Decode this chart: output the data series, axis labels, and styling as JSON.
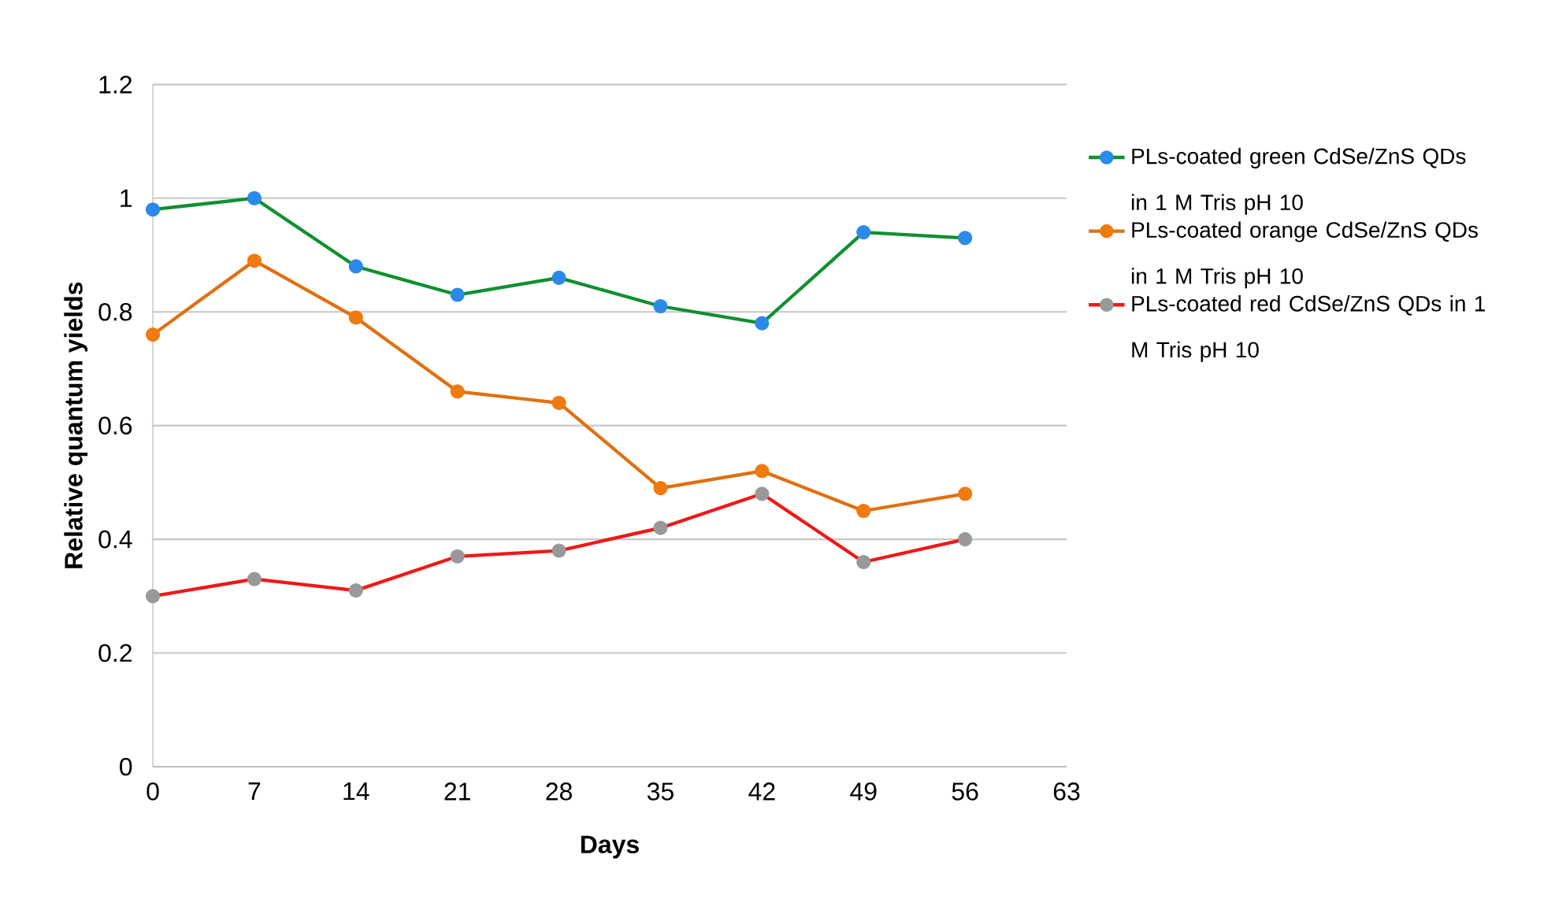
{
  "chart_data": {
    "type": "line",
    "xlabel": "Days",
    "ylabel": "Relative quantum yields",
    "x": [
      0,
      7,
      14,
      21,
      28,
      35,
      42,
      49,
      56
    ],
    "series": [
      {
        "name": "PLs-coated green CdSe/ZnS QDs in 1 M Tris pH 10",
        "color": "#109030",
        "colors": [
          "#2b8ae8",
          "#2b8ae8",
          "#2b8ae8",
          "#2b8ae8",
          "#2b8ae8",
          "#2b8ae8",
          "#2b8ae8",
          "#2b8ae8",
          "#2b8ae8"
        ],
        "values": [
          0.98,
          1.0,
          0.88,
          0.83,
          0.86,
          0.81,
          0.78,
          0.94,
          0.93
        ]
      },
      {
        "name": "PLs-coated orange CdSe/ZnS QDs in 1 M Tris pH 10",
        "color": "#e07010",
        "colors": [
          "#f07a10",
          "#f07a10",
          "#f07a10",
          "#f07a10",
          "#f07a10",
          "#f07a10",
          "#f07a10",
          "#f07a10",
          "#f07a10"
        ],
        "values": [
          0.76,
          0.89,
          0.79,
          0.66,
          0.64,
          0.49,
          0.52,
          0.45,
          0.48
        ]
      },
      {
        "name": "PLs-coated red CdSe/ZnS QDs in 1 M Tris pH 10",
        "color": "#f01818",
        "colors": [
          "#999999",
          "#999999",
          "#999999",
          "#999999",
          "#999999",
          "#999999",
          "#999999",
          "#999999",
          "#999999"
        ],
        "values": [
          0.3,
          0.33,
          0.31,
          0.37,
          0.38,
          0.42,
          0.48,
          0.36,
          0.4
        ]
      }
    ],
    "xlim": [
      0,
      63
    ],
    "xticks": [
      0,
      7,
      14,
      21,
      28,
      35,
      42,
      49,
      56,
      63
    ],
    "ylim": [
      0,
      1.2
    ],
    "yticks": [
      0,
      0.2,
      0.4,
      0.6,
      0.8,
      1,
      1.2
    ],
    "grid": "y",
    "legend": "right",
    "marker": "circle",
    "line_style": "solid"
  }
}
